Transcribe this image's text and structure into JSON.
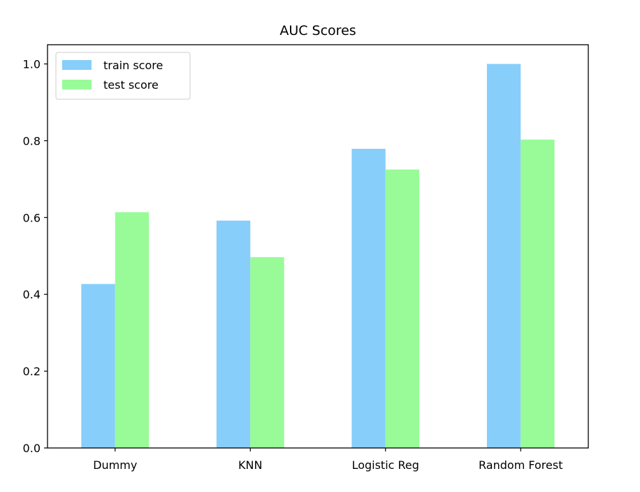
{
  "chart_data": {
    "type": "bar",
    "title": "AUC Scores",
    "xlabel": "",
    "ylabel": "",
    "categories": [
      "Dummy",
      "KNN",
      "Logistic Reg",
      "Random Forest"
    ],
    "series": [
      {
        "name": "train score",
        "color": "#87CEFA",
        "values": [
          0.427,
          0.592,
          0.779,
          1.0
        ]
      },
      {
        "name": "test score",
        "color": "#98FB98",
        "values": [
          0.614,
          0.497,
          0.725,
          0.803
        ]
      }
    ],
    "ylim": [
      0,
      1.05
    ],
    "yticks": [
      "0.0",
      "0.2",
      "0.4",
      "0.6",
      "0.8",
      "1.0"
    ],
    "grid": false,
    "legend_position": "top-left"
  }
}
